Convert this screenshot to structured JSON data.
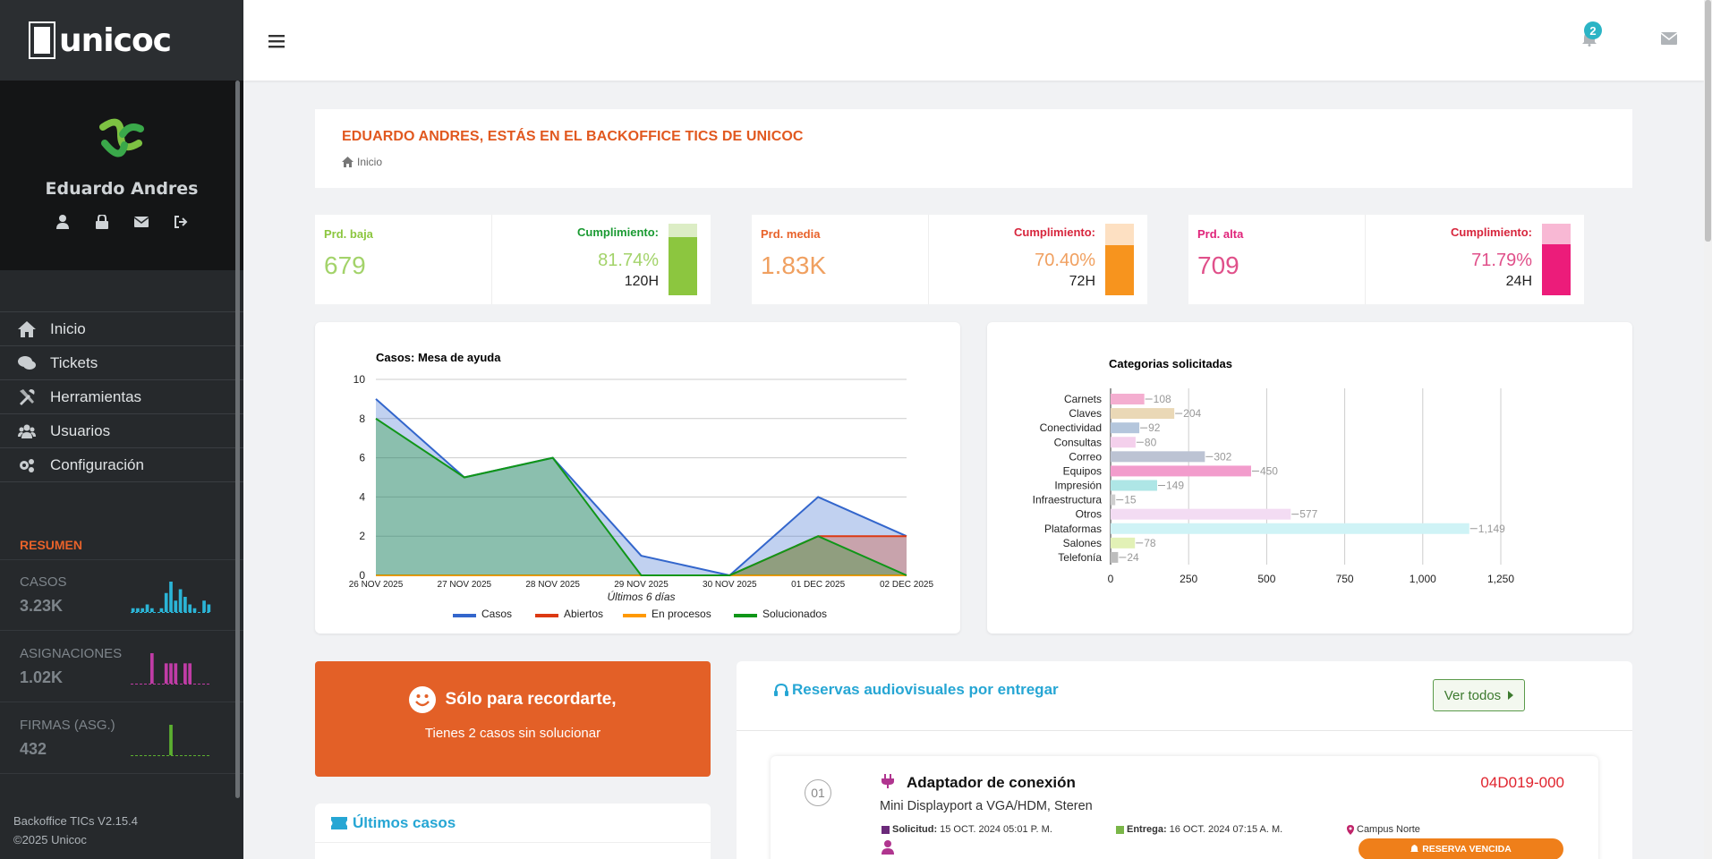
{
  "brand": {
    "name": "unicoc"
  },
  "profile": {
    "name": "Eduardo Andres"
  },
  "nav": [
    {
      "label": "Inicio",
      "icon": "home-icon"
    },
    {
      "label": "Tickets",
      "icon": "comments-icon"
    },
    {
      "label": "Herramientas",
      "icon": "tools-icon"
    },
    {
      "label": "Usuarios",
      "icon": "users-icon"
    },
    {
      "label": "Configuración",
      "icon": "cogs-icon"
    }
  ],
  "resumen": {
    "title": "RESUMEN",
    "items": [
      {
        "label": "CASOS",
        "value": "3.23K",
        "color": "#2bb4d6",
        "bars": [
          1,
          1,
          1,
          2,
          1,
          0,
          1,
          5,
          8,
          3,
          6,
          4,
          2,
          1,
          0,
          3,
          2
        ]
      },
      {
        "label": "ASIGNACIONES",
        "value": "1.02K",
        "color": "#c03ca6",
        "bars": [
          0,
          0,
          0,
          0,
          9,
          0,
          0,
          6,
          6,
          6,
          0,
          6,
          6,
          0,
          0,
          0,
          0
        ]
      },
      {
        "label": "FIRMAS (ASG.)",
        "value": "432",
        "color": "#5cb030",
        "bars": [
          0,
          0,
          0,
          0,
          0,
          0,
          0,
          0,
          9,
          0,
          0,
          0,
          0,
          0,
          0,
          0,
          0
        ]
      }
    ]
  },
  "footer": {
    "version": "Backoffice TICs V2.15.4",
    "copyright": "©2025 Unicoc"
  },
  "topbar": {
    "notifications": "2"
  },
  "header": {
    "greeting": "EDUARDO ANDRES, ESTÁS EN EL BACKOFFICE TICS DE UNICOC",
    "breadcrumb": "Inicio"
  },
  "kpis": [
    {
      "title": "Prd. baja",
      "value": "679",
      "cumplimiento_label": "Cumplimiento:",
      "percent": "81.74%",
      "hours": "120H",
      "fraction": 0.8174,
      "title_color": "#8cc63f",
      "value_color": "#a3d36a",
      "cump_color": "#1a9a32",
      "pct_color": "#a3d36a",
      "bar_color": "#8cc63f",
      "bar_bg": "#dcedc5"
    },
    {
      "title": "Prd. media",
      "value": "1.83K",
      "cumplimiento_label": "Cumplimiento:",
      "percent": "70.40%",
      "hours": "72H",
      "fraction": 0.704,
      "title_color": "#e8622a",
      "value_color": "#f0a060",
      "cump_color": "#d7263d",
      "pct_color": "#f0a060",
      "bar_color": "#f7941e",
      "bar_bg": "#fde0c2"
    },
    {
      "title": "Prd. alta",
      "value": "709",
      "cumplimiento_label": "Cumplimiento:",
      "percent": "71.79%",
      "hours": "24H",
      "fraction": 0.7179,
      "title_color": "#e0247a",
      "value_color": "#e0508a",
      "cump_color": "#d7263d",
      "pct_color": "#e0508a",
      "bar_color": "#ec1c7a",
      "bar_bg": "#f8b8d4"
    }
  ],
  "chart_data": [
    {
      "type": "area",
      "title": "Casos: Mesa de ayuda",
      "xlabel": "Últimos 6 días",
      "ylabel": "",
      "ylim": [
        0,
        10
      ],
      "yticks": [
        0,
        2,
        4,
        6,
        8,
        10
      ],
      "categories": [
        "26 NOV 2025",
        "27 NOV 2025",
        "28 NOV 2025",
        "29 NOV 2025",
        "30 NOV 2025",
        "01 DEC 2025",
        "02 DEC 2025"
      ],
      "legend": "bottom",
      "series": [
        {
          "name": "Casos",
          "color": "#3366cc",
          "values": [
            9,
            5,
            6,
            1,
            0,
            4,
            2
          ]
        },
        {
          "name": "Abiertos",
          "color": "#dc3912",
          "values": [
            0,
            0,
            0,
            0,
            0,
            2,
            2
          ]
        },
        {
          "name": "En procesos",
          "color": "#ff9900",
          "values": [
            0,
            0,
            0,
            0,
            0,
            0,
            0
          ]
        },
        {
          "name": "Solucionados",
          "color": "#109618",
          "values": [
            8,
            5,
            6,
            0,
            0,
            2,
            0
          ]
        }
      ]
    },
    {
      "type": "bar",
      "orientation": "horizontal",
      "title": "Categorias solicitadas",
      "xlim": [
        0,
        1250
      ],
      "xticks": [
        "0",
        "250",
        "500",
        "750",
        "1,000",
        "1,250"
      ],
      "categories": [
        "Carnets",
        "Claves",
        "Conectividad",
        "Consultas",
        "Correo",
        "Equipos",
        "Impresión",
        "Infraestructura",
        "Otros",
        "Plataformas",
        "Salones",
        "Telefonía"
      ],
      "values": [
        108,
        204,
        92,
        80,
        302,
        450,
        149,
        15,
        577,
        1149,
        78,
        24
      ],
      "labels": [
        "108",
        "204",
        "92",
        "80",
        "302",
        "450",
        "149",
        "15",
        "577",
        "1,149",
        "78",
        "24"
      ],
      "colors": [
        "#f4aed0",
        "#ead8b6",
        "#b4c6dc",
        "#f4d0ec",
        "#bcc3d3",
        "#f29ccc",
        "#aee6e6",
        "#cfcfcf",
        "#f3dcf3",
        "#cff3f6",
        "#e2f1b6",
        "#bdbdbd"
      ]
    }
  ],
  "reminder": {
    "title": "Sólo para recordarte,",
    "subtitle": "Tienes 2 casos sin solucionar"
  },
  "ultimos": {
    "title": "Últimos casos"
  },
  "reservas": {
    "title": "Reservas audiovisuales por entregar",
    "button": "Ver todos",
    "items": [
      {
        "num": "01",
        "name": "Adaptador de conexión",
        "code": "04D019-000",
        "desc": "Mini Displayport a VGA/HDM, Steren",
        "solicitud_label": "Solicitud:",
        "solicitud": "15 OCT. 2024 05:01 P. M.",
        "entrega_label": "Entrega:",
        "entrega": "16 OCT. 2024 07:15 A. M.",
        "campus": "Campus Norte",
        "status": "RESERVA VENCIDA"
      }
    ]
  }
}
